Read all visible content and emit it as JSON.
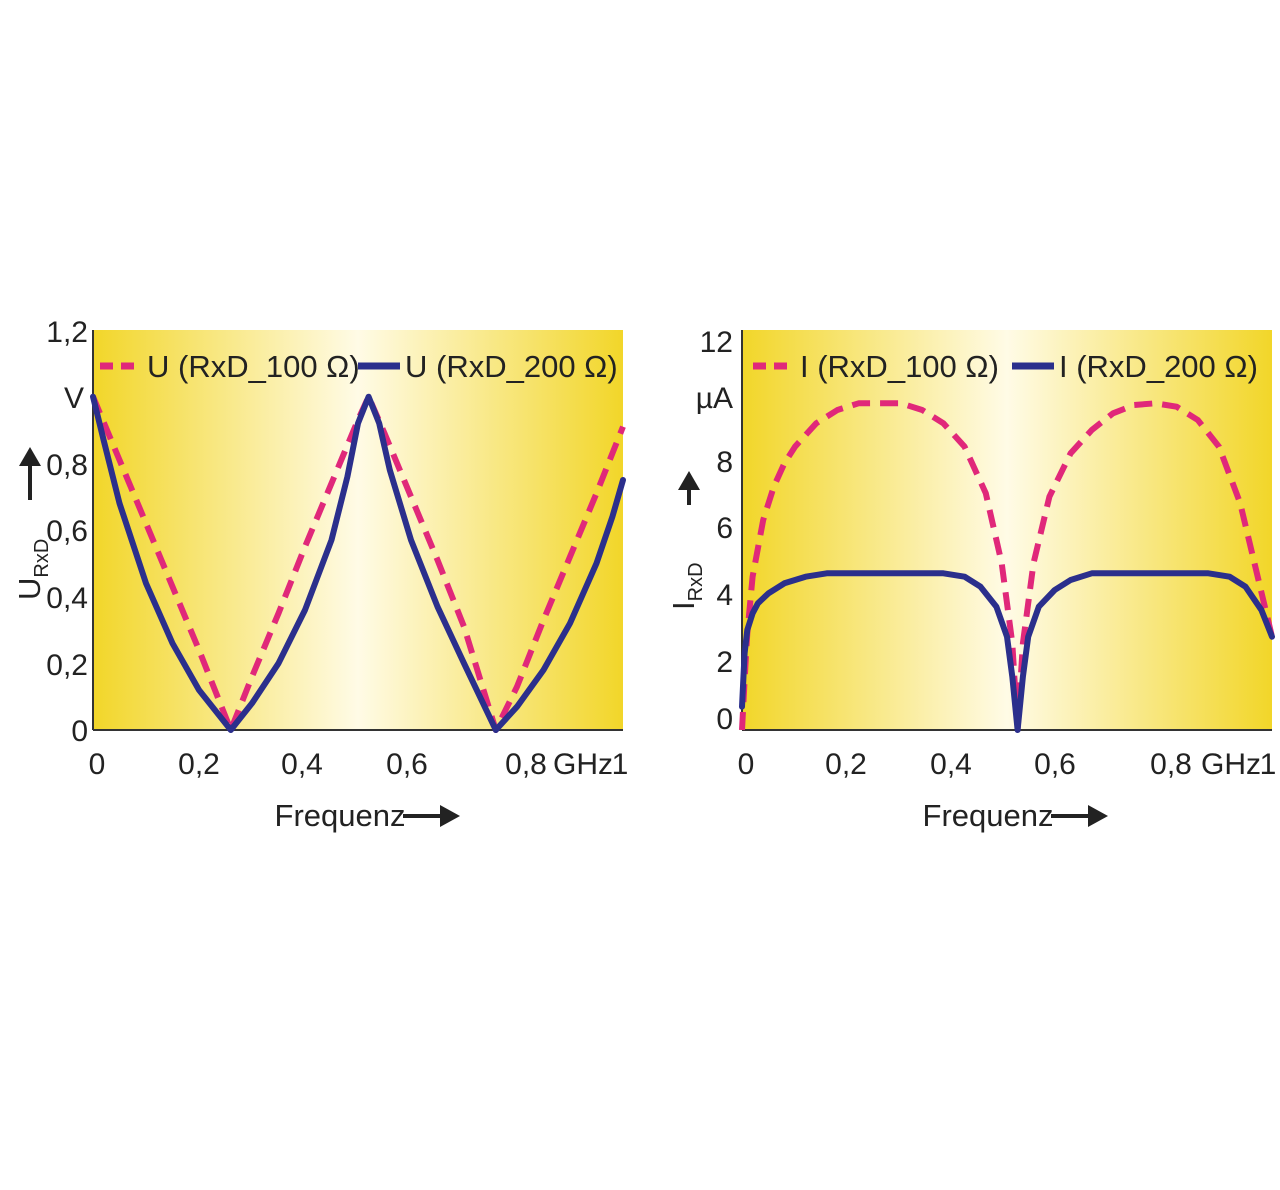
{
  "colors": {
    "dashed_series": "#e0287a",
    "solid_series": "#2b2f8c",
    "plot_edge": "#f2d629",
    "plot_center": "#fffbe6",
    "text": "#222222"
  },
  "chart_data": [
    {
      "type": "line",
      "ylabel_main": "U",
      "ylabel_sub": "RxD",
      "y_unit": "V",
      "xlabel": "Frequenz",
      "x_unit": "GHz",
      "xlim": [
        0,
        1
      ],
      "ylim": [
        0,
        1.2
      ],
      "x_ticks": [
        "0",
        "0,2",
        "0,4",
        "0,6",
        "0,8",
        "1"
      ],
      "y_ticks": [
        "0",
        "0,2",
        "0,4",
        "0,6",
        "0,8",
        "1,2"
      ],
      "legend_placement": "top",
      "series": [
        {
          "name": "U (RxD_100 Ω)",
          "style": "dashed",
          "x": [
            0,
            0.05,
            0.1,
            0.15,
            0.2,
            0.26,
            0.3,
            0.35,
            0.4,
            0.45,
            0.5,
            0.52,
            0.55,
            0.6,
            0.65,
            0.7,
            0.76,
            0.8,
            0.85,
            0.9,
            0.95,
            1.0
          ],
          "y": [
            1.0,
            0.81,
            0.62,
            0.43,
            0.24,
            0.0,
            0.16,
            0.35,
            0.55,
            0.74,
            0.93,
            1.0,
            0.89,
            0.7,
            0.51,
            0.31,
            0.0,
            0.13,
            0.33,
            0.52,
            0.71,
            0.91
          ]
        },
        {
          "name": "U (RxD_200 Ω)",
          "style": "solid",
          "x": [
            0,
            0.02,
            0.05,
            0.1,
            0.15,
            0.2,
            0.26,
            0.3,
            0.35,
            0.4,
            0.45,
            0.48,
            0.5,
            0.52,
            0.54,
            0.56,
            0.6,
            0.65,
            0.7,
            0.76,
            0.8,
            0.85,
            0.9,
            0.95,
            0.98,
            1.0
          ],
          "y": [
            1.0,
            0.87,
            0.68,
            0.44,
            0.26,
            0.12,
            0.0,
            0.08,
            0.2,
            0.36,
            0.57,
            0.76,
            0.92,
            1.0,
            0.92,
            0.78,
            0.57,
            0.37,
            0.2,
            0.0,
            0.07,
            0.18,
            0.32,
            0.5,
            0.64,
            0.75
          ]
        }
      ]
    },
    {
      "type": "line",
      "ylabel_main": "I",
      "ylabel_sub": "RxD",
      "y_unit": "µA",
      "xlabel": "Frequenz",
      "x_unit": "GHz",
      "xlim": [
        0,
        1
      ],
      "ylim": [
        0,
        12
      ],
      "x_ticks": [
        "0",
        "0,2",
        "0,4",
        "0,6",
        "0,8",
        "1"
      ],
      "y_ticks": [
        "0",
        "2",
        "4",
        "6",
        "8",
        "12"
      ],
      "legend_placement": "top",
      "series": [
        {
          "name": "I (RxD_100 Ω)",
          "style": "dashed",
          "x": [
            0,
            0.005,
            0.01,
            0.02,
            0.04,
            0.06,
            0.08,
            0.1,
            0.14,
            0.18,
            0.22,
            0.26,
            0.3,
            0.34,
            0.38,
            0.42,
            0.46,
            0.49,
            0.51,
            0.52,
            0.53,
            0.55,
            0.58,
            0.62,
            0.66,
            0.7,
            0.74,
            0.78,
            0.82,
            0.86,
            0.9,
            0.94,
            0.97,
            1.0
          ],
          "y": [
            0,
            1.5,
            2.9,
            4.6,
            6.3,
            7.3,
            8.0,
            8.5,
            9.2,
            9.6,
            9.8,
            9.8,
            9.8,
            9.6,
            9.2,
            8.5,
            7.1,
            5.0,
            2.6,
            0.0,
            2.6,
            5.0,
            7.0,
            8.3,
            9.0,
            9.5,
            9.75,
            9.8,
            9.7,
            9.3,
            8.5,
            6.8,
            4.8,
            2.8
          ]
        },
        {
          "name": "I (RxD_200 Ω)",
          "style": "solid",
          "x": [
            0,
            0.005,
            0.01,
            0.02,
            0.03,
            0.05,
            0.08,
            0.12,
            0.16,
            0.2,
            0.3,
            0.38,
            0.42,
            0.45,
            0.48,
            0.5,
            0.51,
            0.52,
            0.53,
            0.54,
            0.56,
            0.59,
            0.62,
            0.66,
            0.7,
            0.8,
            0.88,
            0.92,
            0.95,
            0.98,
            1.0
          ],
          "y": [
            0.7,
            2.3,
            3.0,
            3.5,
            3.8,
            4.1,
            4.4,
            4.6,
            4.7,
            4.7,
            4.7,
            4.7,
            4.6,
            4.3,
            3.7,
            2.8,
            1.6,
            0.0,
            1.6,
            2.8,
            3.7,
            4.2,
            4.5,
            4.7,
            4.7,
            4.7,
            4.7,
            4.6,
            4.3,
            3.6,
            2.8
          ]
        }
      ]
    }
  ]
}
